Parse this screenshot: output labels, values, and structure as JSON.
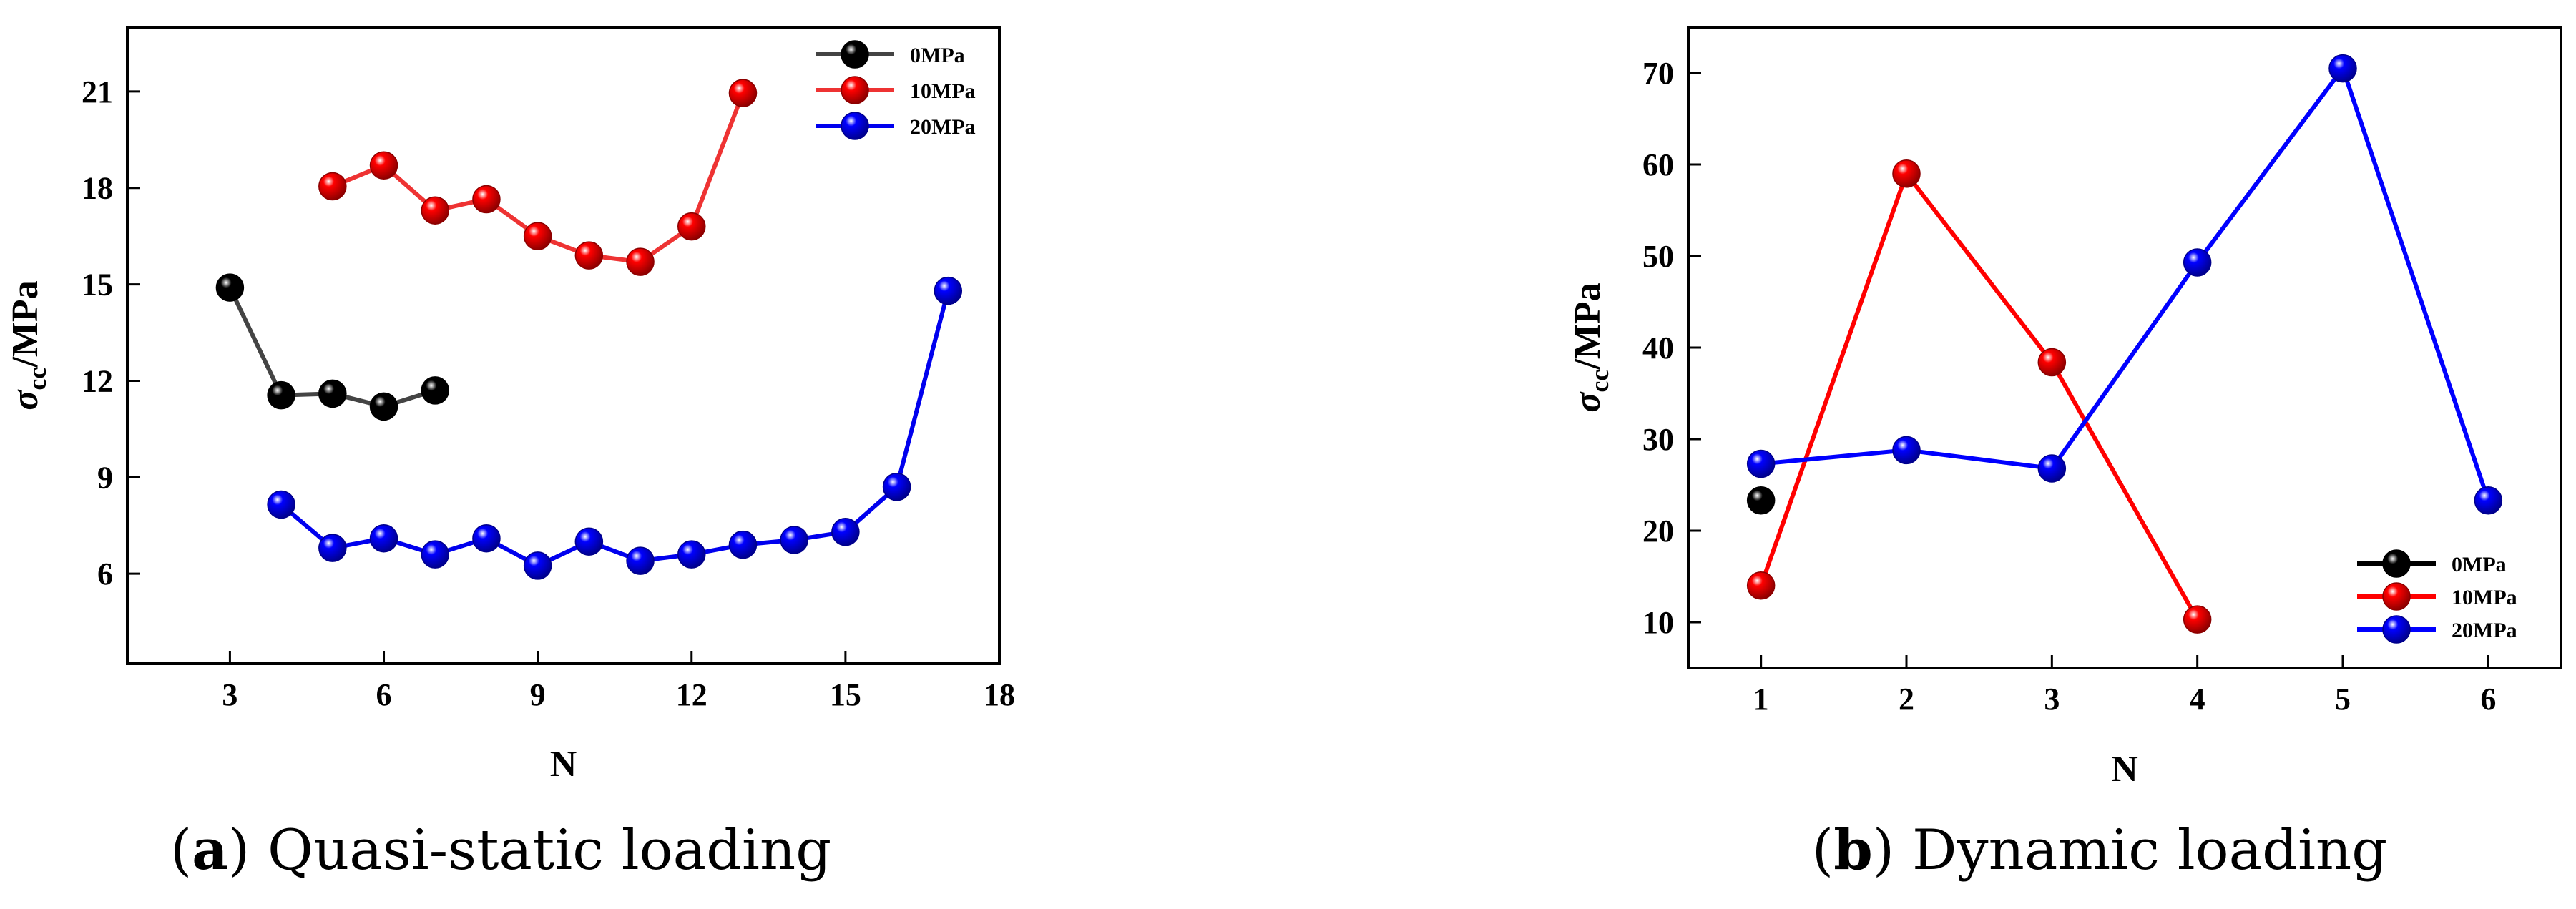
{
  "chart_data": [
    {
      "type": "line",
      "caption": {
        "letter": "a",
        "text": "Quasi-static loading"
      },
      "xlabel": "N",
      "ylabel": {
        "base": "σ",
        "sub": "cc",
        "rest": "/MPa"
      },
      "xlim": [
        1,
        18
      ],
      "ylim": [
        3.2,
        23
      ],
      "xticks": [
        3,
        6,
        9,
        12,
        15,
        18
      ],
      "yticks": [
        6,
        9,
        12,
        15,
        18,
        21
      ],
      "grid": false,
      "legend_position": "top-right",
      "series": [
        {
          "name": "0MPa",
          "color": "#000000",
          "line_color": "#444444",
          "x": [
            3,
            4,
            5,
            6,
            7
          ],
          "y": [
            14.9,
            11.55,
            11.6,
            11.2,
            11.7
          ]
        },
        {
          "name": "10MPa",
          "color": "#ff0000",
          "line_color": "#ee3333",
          "x": [
            5,
            6,
            7,
            8,
            9,
            10,
            11,
            12,
            13
          ],
          "y": [
            18.05,
            18.7,
            17.3,
            17.65,
            16.5,
            15.9,
            15.7,
            16.8,
            20.95
          ]
        },
        {
          "name": "20MPa",
          "color": "#0000ff",
          "line_color": "#0000ee",
          "x": [
            4,
            5,
            6,
            7,
            8,
            9,
            10,
            11,
            12,
            13,
            14,
            15,
            16,
            17
          ],
          "y": [
            8.15,
            6.8,
            7.1,
            6.6,
            7.1,
            6.25,
            7.0,
            6.4,
            6.6,
            6.9,
            7.05,
            7.3,
            8.7,
            14.8
          ]
        }
      ]
    },
    {
      "type": "line",
      "caption": {
        "letter": "b",
        "text": "Dynamic loading"
      },
      "xlabel": "N",
      "ylabel": {
        "base": "σ",
        "sub": "cc",
        "rest": "/MPa"
      },
      "xlim": [
        0.5,
        6.5
      ],
      "ylim": [
        5,
        75
      ],
      "xticks": [
        1,
        2,
        3,
        4,
        5,
        6
      ],
      "yticks": [
        10,
        20,
        30,
        40,
        50,
        60,
        70
      ],
      "grid": false,
      "legend_position": "bottom-right",
      "series": [
        {
          "name": "0MPa",
          "color": "#000000",
          "line_color": "#000000",
          "x": [
            1
          ],
          "y": [
            23.3
          ]
        },
        {
          "name": "10MPa",
          "color": "#ff0000",
          "line_color": "#ff0000",
          "x": [
            1,
            2,
            3,
            4
          ],
          "y": [
            14.0,
            59.0,
            38.4,
            10.3
          ]
        },
        {
          "name": "20MPa",
          "color": "#0000ff",
          "line_color": "#0000ff",
          "x": [
            1,
            2,
            3,
            4,
            5,
            6
          ],
          "y": [
            27.3,
            28.8,
            26.8,
            49.3,
            70.5,
            23.3
          ]
        }
      ]
    }
  ]
}
